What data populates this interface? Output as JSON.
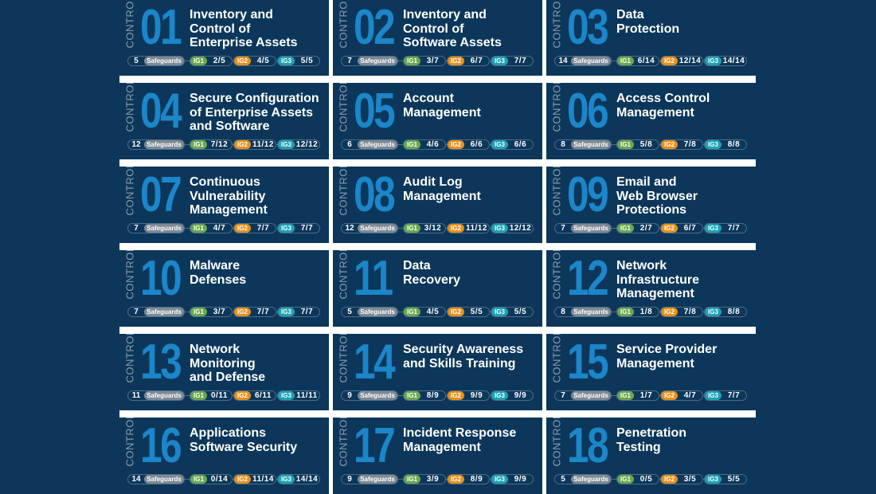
{
  "labels": {
    "control": "CONTROL",
    "safeguards": "Safeguards",
    "ig1": "IG1",
    "ig2": "IG2",
    "ig3": "IG3"
  },
  "colors": {
    "background": "#0c375a",
    "number": "#1b86c9",
    "ig1": "#6aa84f",
    "ig2": "#e8901a",
    "ig3": "#1ba3b3",
    "safeguards": "#7d8a96"
  },
  "controls": [
    {
      "num": "01",
      "title": "Inventory and\nControl of\nEnterprise Assets",
      "safeguards": "5",
      "ig1": "2/5",
      "ig2": "4/5",
      "ig3": "5/5"
    },
    {
      "num": "02",
      "title": "Inventory and\nControl of\nSoftware Assets",
      "safeguards": "7",
      "ig1": "3/7",
      "ig2": "6/7",
      "ig3": "7/7"
    },
    {
      "num": "03",
      "title": "Data\nProtection",
      "safeguards": "14",
      "ig1": "6/14",
      "ig2": "12/14",
      "ig3": "14/14"
    },
    {
      "num": "04",
      "title": "Secure Configuration\nof Enterprise Assets\nand Software",
      "safeguards": "12",
      "ig1": "7/12",
      "ig2": "11/12",
      "ig3": "12/12"
    },
    {
      "num": "05",
      "title": "Account\nManagement",
      "safeguards": "6",
      "ig1": "4/6",
      "ig2": "6/6",
      "ig3": "6/6"
    },
    {
      "num": "06",
      "title": "Access Control\nManagement",
      "safeguards": "8",
      "ig1": "5/8",
      "ig2": "7/8",
      "ig3": "8/8"
    },
    {
      "num": "07",
      "title": "Continuous\nVulnerability\nManagement",
      "safeguards": "7",
      "ig1": "4/7",
      "ig2": "7/7",
      "ig3": "7/7"
    },
    {
      "num": "08",
      "title": "Audit Log\nManagement",
      "safeguards": "12",
      "ig1": "3/12",
      "ig2": "11/12",
      "ig3": "12/12"
    },
    {
      "num": "09",
      "title": "Email and\nWeb Browser\nProtections",
      "safeguards": "7",
      "ig1": "2/7",
      "ig2": "6/7",
      "ig3": "7/7"
    },
    {
      "num": "10",
      "title": "Malware\nDefenses",
      "safeguards": "7",
      "ig1": "3/7",
      "ig2": "7/7",
      "ig3": "7/7"
    },
    {
      "num": "11",
      "title": "Data\nRecovery",
      "safeguards": "5",
      "ig1": "4/5",
      "ig2": "5/5",
      "ig3": "5/5"
    },
    {
      "num": "12",
      "title": "Network\nInfrastructure\nManagement",
      "safeguards": "8",
      "ig1": "1/8",
      "ig2": "7/8",
      "ig3": "8/8"
    },
    {
      "num": "13",
      "title": "Network\nMonitoring\nand Defense",
      "safeguards": "11",
      "ig1": "0/11",
      "ig2": "6/11",
      "ig3": "11/11"
    },
    {
      "num": "14",
      "title": "Security Awareness\nand Skills Training",
      "safeguards": "9",
      "ig1": "8/9",
      "ig2": "9/9",
      "ig3": "9/9"
    },
    {
      "num": "15",
      "title": "Service Provider\nManagement",
      "safeguards": "7",
      "ig1": "1/7",
      "ig2": "4/7",
      "ig3": "7/7"
    },
    {
      "num": "16",
      "title": "Applications\nSoftware Security",
      "safeguards": "14",
      "ig1": "0/14",
      "ig2": "11/14",
      "ig3": "14/14"
    },
    {
      "num": "17",
      "title": "Incident Response\nManagement",
      "safeguards": "9",
      "ig1": "3/9",
      "ig2": "8/9",
      "ig3": "9/9"
    },
    {
      "num": "18",
      "title": "Penetration\nTesting",
      "safeguards": "5",
      "ig1": "0/5",
      "ig2": "3/5",
      "ig3": "5/5"
    }
  ]
}
